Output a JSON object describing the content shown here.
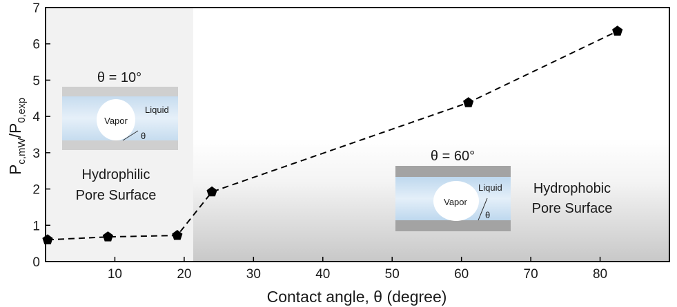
{
  "chart_data": {
    "type": "line",
    "xlabel": "Contact angle, θ (degree)",
    "ylabel": {
      "base": "P",
      "sub1": "c,mW",
      "sep": "/P",
      "sub2": "0,exp"
    },
    "xlim": [
      0,
      90
    ],
    "ylim": [
      0,
      7
    ],
    "x_ticks": [
      10,
      20,
      30,
      40,
      50,
      60,
      70,
      80
    ],
    "y_ticks": [
      0,
      1,
      2,
      3,
      4,
      5,
      6,
      7
    ],
    "grid": false,
    "series": [
      {
        "x": [
          0.3,
          9,
          19,
          24,
          61,
          82.5
        ],
        "y": [
          0.6,
          0.68,
          0.72,
          1.92,
          4.38,
          6.35
        ],
        "line_style": "dashed",
        "marker": "pentagon",
        "color": "#000000"
      }
    ],
    "background_regions": [
      {
        "from": 0,
        "to": 21.3,
        "fill": "#f2f2f2"
      },
      {
        "from": 21.3,
        "to": 90,
        "fill": "gradient-white-to-gray"
      }
    ],
    "annotations": {
      "left_inset": {
        "angle_label": "θ = 10°",
        "liquid": "Liquid",
        "vapor": "Vapor",
        "theta": "θ",
        "caption_line1": "Hydrophilic",
        "caption_line2": "Pore Surface"
      },
      "right_inset": {
        "angle_label": "θ = 60°",
        "liquid": "Liquid",
        "vapor": "Vapor",
        "theta": "θ",
        "caption_line1": "Hydrophobic",
        "caption_line2": "Pore Surface"
      }
    }
  },
  "colors": {
    "wall_left": "#cfcfcf",
    "wall_right": "#a3a3a3",
    "liquid_light": "#d9e8f6",
    "liquid_mid": "#bcd7ee",
    "text": "#1a1a1a"
  }
}
